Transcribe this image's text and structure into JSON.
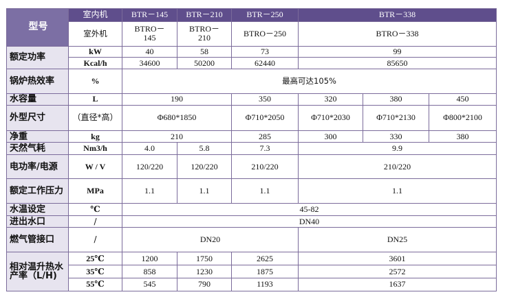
{
  "header": {
    "model_label": "型号",
    "indoor_label": "室内机",
    "outdoor_label": "室外机",
    "indoor_models": [
      "BTR－145",
      "BTR－210",
      "BTR－250",
      "BTR－338"
    ],
    "outdoor_models": [
      "BTRO－\n145",
      "BTRO－\n210",
      "BTRO－250",
      "BTRO－338"
    ]
  },
  "rows": {
    "rated_power": {
      "label": "额定功率",
      "kw_unit": "kW",
      "kw_values": [
        "40",
        "58",
        "73",
        "99"
      ],
      "kcal_unit": "Kcal/h",
      "kcal_values": [
        "34600",
        "50200",
        "62440",
        "85650"
      ]
    },
    "efficiency": {
      "label": "锅炉热效率",
      "unit": "%",
      "value": "最高可达105%"
    },
    "water_capacity": {
      "label": "水容量",
      "unit": "L",
      "values": [
        "190",
        "350",
        "320",
        "380",
        "450"
      ]
    },
    "dimensions": {
      "label": "外型尺寸",
      "unit": "（直径*高）",
      "values": [
        "Φ680*1850",
        "Φ710*2050",
        "Φ710*2030",
        "Φ710*2130",
        "Φ800*2100"
      ]
    },
    "net_weight": {
      "label": "净重",
      "unit": "kg",
      "values": [
        "210",
        "285",
        "300",
        "330",
        "380"
      ]
    },
    "gas_consumption": {
      "label": "天然气耗",
      "unit": "Nm3/h",
      "values": [
        "4.0",
        "5.8",
        "7.3",
        "9.9"
      ]
    },
    "power_supply": {
      "label": "电功率/电源",
      "unit": "W / V",
      "values": [
        "120/220",
        "120/220",
        "210/220",
        "210/220"
      ]
    },
    "working_pressure": {
      "label": "额定工作压力",
      "unit": "MPa",
      "values": [
        "1.1",
        "1.1",
        "1.1",
        "1.1"
      ]
    },
    "water_temp": {
      "label": "水温设定",
      "unit": "℃",
      "value": "45-82"
    },
    "inlet_outlet": {
      "label": "进出水口",
      "unit": "/",
      "value": "DN40"
    },
    "gas_pipe": {
      "label": "燃气管接口",
      "unit": "/",
      "values": [
        "DN20",
        "DN25"
      ]
    },
    "hot_water": {
      "label": "相对温升热水产率（L/H)",
      "rise_25": "25℃",
      "values_25": [
        "1200",
        "1750",
        "2625",
        "3601"
      ],
      "rise_35": "35℃",
      "values_35": [
        "858",
        "1230",
        "1875",
        "2572"
      ],
      "rise_55": "55℃",
      "values_55": [
        "545",
        "790",
        "1193",
        "1637"
      ]
    }
  }
}
